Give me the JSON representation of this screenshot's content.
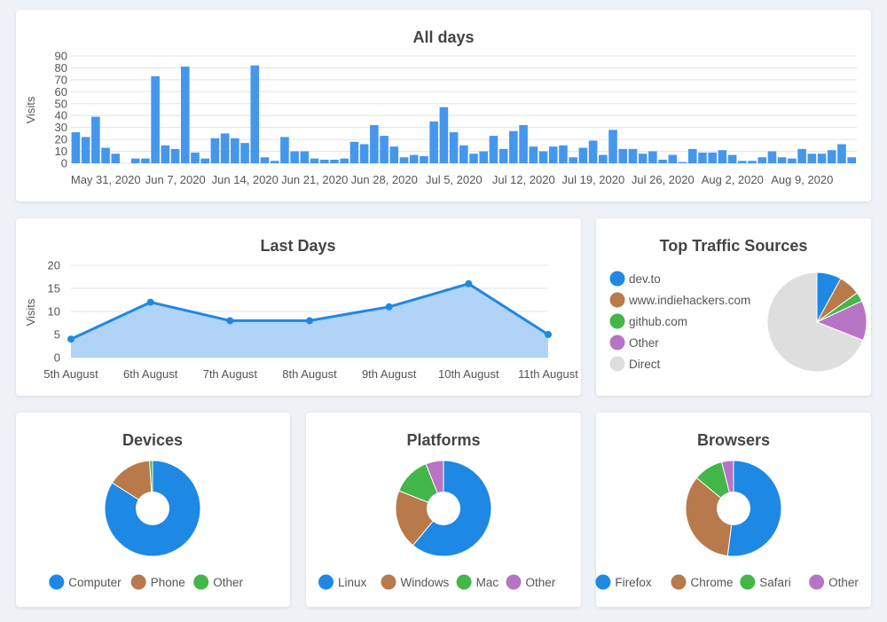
{
  "colors": {
    "blue": "#1e88e5",
    "brown": "#b87a4b",
    "green": "#43b649",
    "purple": "#b874c4",
    "light": "#dedede",
    "bar": "#4597ee",
    "area": "#a7cef6",
    "grid": "#e3e3e3"
  },
  "chart_data": [
    {
      "type": "bar",
      "title": "All days",
      "ylabel": "Visits",
      "ylim": [
        0,
        90
      ],
      "yticks": [
        0,
        10,
        20,
        30,
        40,
        50,
        60,
        70,
        80,
        90
      ],
      "x_tick_labels": [
        "May 31, 2020",
        "Jun 7, 2020",
        "Jun 14, 2020",
        "Jun 21, 2020",
        "Jun 28, 2020",
        "Jul 5, 2020",
        "Jul 12, 2020",
        "Jul 19, 2020",
        "Jul 26, 2020",
        "Aug 2, 2020",
        "Aug 9, 2020"
      ],
      "x_tick_day_index": [
        3,
        10,
        17,
        24,
        31,
        38,
        45,
        52,
        59,
        66,
        73
      ],
      "values": [
        26,
        22,
        39,
        13,
        8,
        0,
        4,
        4,
        73,
        15,
        12,
        81,
        9,
        4,
        21,
        25,
        21,
        17,
        82,
        5,
        2,
        22,
        10,
        10,
        4,
        3,
        3,
        4,
        18,
        16,
        32,
        23,
        14,
        5,
        7,
        6,
        35,
        47,
        26,
        15,
        8,
        10,
        23,
        12,
        27,
        32,
        14,
        10,
        14,
        15,
        5,
        13,
        19,
        7,
        28,
        12,
        12,
        8,
        10,
        3,
        7,
        1,
        12,
        9,
        9,
        11,
        7,
        2,
        2,
        5,
        10,
        5,
        4,
        12,
        8,
        8,
        11,
        16,
        5
      ],
      "grid": true
    },
    {
      "type": "area",
      "title": "Last Days",
      "ylabel": "Visits",
      "ylim": [
        0,
        20
      ],
      "yticks": [
        0,
        5,
        10,
        15,
        20
      ],
      "categories": [
        "5th August",
        "6th August",
        "7th August",
        "8th August",
        "9th August",
        "10th August",
        "11th August"
      ],
      "values": [
        4,
        12,
        8,
        8,
        11,
        16,
        5
      ],
      "grid": true
    },
    {
      "type": "pie",
      "title": "Top Traffic Sources",
      "legend_position": "left",
      "labels": [
        "dev.to",
        "www.indiehackers.com",
        "github.com",
        "Other",
        "Direct"
      ],
      "values": [
        8,
        7,
        3,
        13,
        69
      ],
      "colors": [
        "#1e88e5",
        "#b87a4b",
        "#43b649",
        "#b874c4",
        "#dedede"
      ]
    },
    {
      "type": "pie",
      "title": "Devices",
      "donut": true,
      "legend_position": "bottom",
      "labels": [
        "Computer",
        "Phone",
        "Other"
      ],
      "values": [
        84,
        15,
        1
      ],
      "colors": [
        "#1e88e5",
        "#b87a4b",
        "#43b649"
      ]
    },
    {
      "type": "pie",
      "title": "Platforms",
      "donut": true,
      "legend_position": "bottom",
      "labels": [
        "Linux",
        "Windows",
        "Mac",
        "Other"
      ],
      "values": [
        61,
        20,
        13,
        6
      ],
      "colors": [
        "#1e88e5",
        "#b87a4b",
        "#43b649",
        "#b874c4"
      ]
    },
    {
      "type": "pie",
      "title": "Browsers",
      "donut": true,
      "legend_position": "bottom",
      "labels": [
        "Firefox",
        "Chrome",
        "Safari",
        "Other"
      ],
      "values": [
        52,
        34,
        10,
        4
      ],
      "colors": [
        "#1e88e5",
        "#b87a4b",
        "#43b649",
        "#b874c4"
      ]
    }
  ]
}
